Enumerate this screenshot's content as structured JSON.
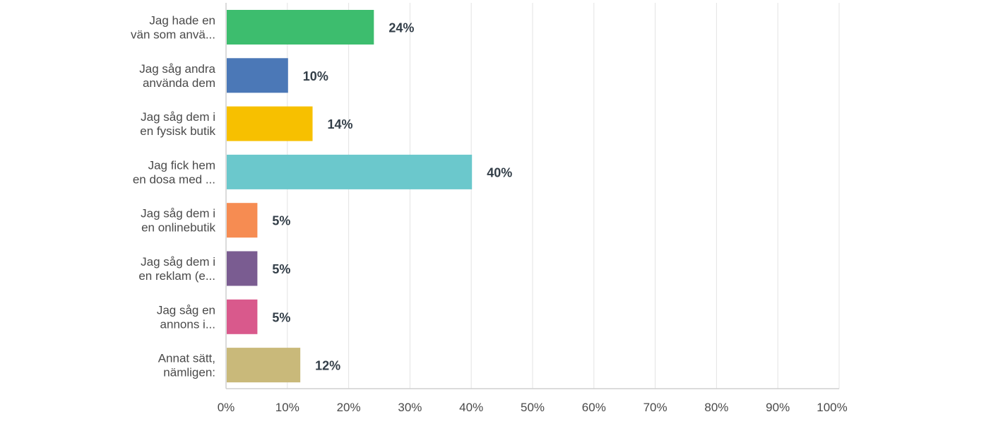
{
  "chart_data": {
    "type": "bar",
    "orientation": "horizontal",
    "categories": [
      [
        "Jag hade en",
        "vän som anvä..."
      ],
      [
        "Jag såg andra",
        "använda dem"
      ],
      [
        "Jag såg dem i",
        "en fysisk butik"
      ],
      [
        "Jag fick hem",
        "en dosa med ..."
      ],
      [
        "Jag såg dem i",
        "en onlinebutik"
      ],
      [
        "Jag såg dem i",
        "en reklam (e..."
      ],
      [
        "Jag såg en",
        "annons i..."
      ],
      [
        "Annat sätt,",
        "nämligen:"
      ]
    ],
    "values": [
      24,
      10,
      14,
      40,
      5,
      5,
      5,
      12
    ],
    "value_labels": [
      "24%",
      "10%",
      "14%",
      "40%",
      "5%",
      "5%",
      "5%",
      "12%"
    ],
    "colors": [
      "#3dbd6e",
      "#4b78b7",
      "#f7c000",
      "#6bc8cc",
      "#f68c52",
      "#7a5c91",
      "#d9598c",
      "#c9b97a"
    ],
    "xlim": [
      0,
      100
    ],
    "x_ticks": [
      0,
      10,
      20,
      30,
      40,
      50,
      60,
      70,
      80,
      90,
      100
    ],
    "x_tick_labels": [
      "0%",
      "10%",
      "20%",
      "30%",
      "40%",
      "50%",
      "60%",
      "70%",
      "80%",
      "90%",
      "100%"
    ],
    "grid": true,
    "title": "",
    "xlabel": "",
    "ylabel": ""
  }
}
